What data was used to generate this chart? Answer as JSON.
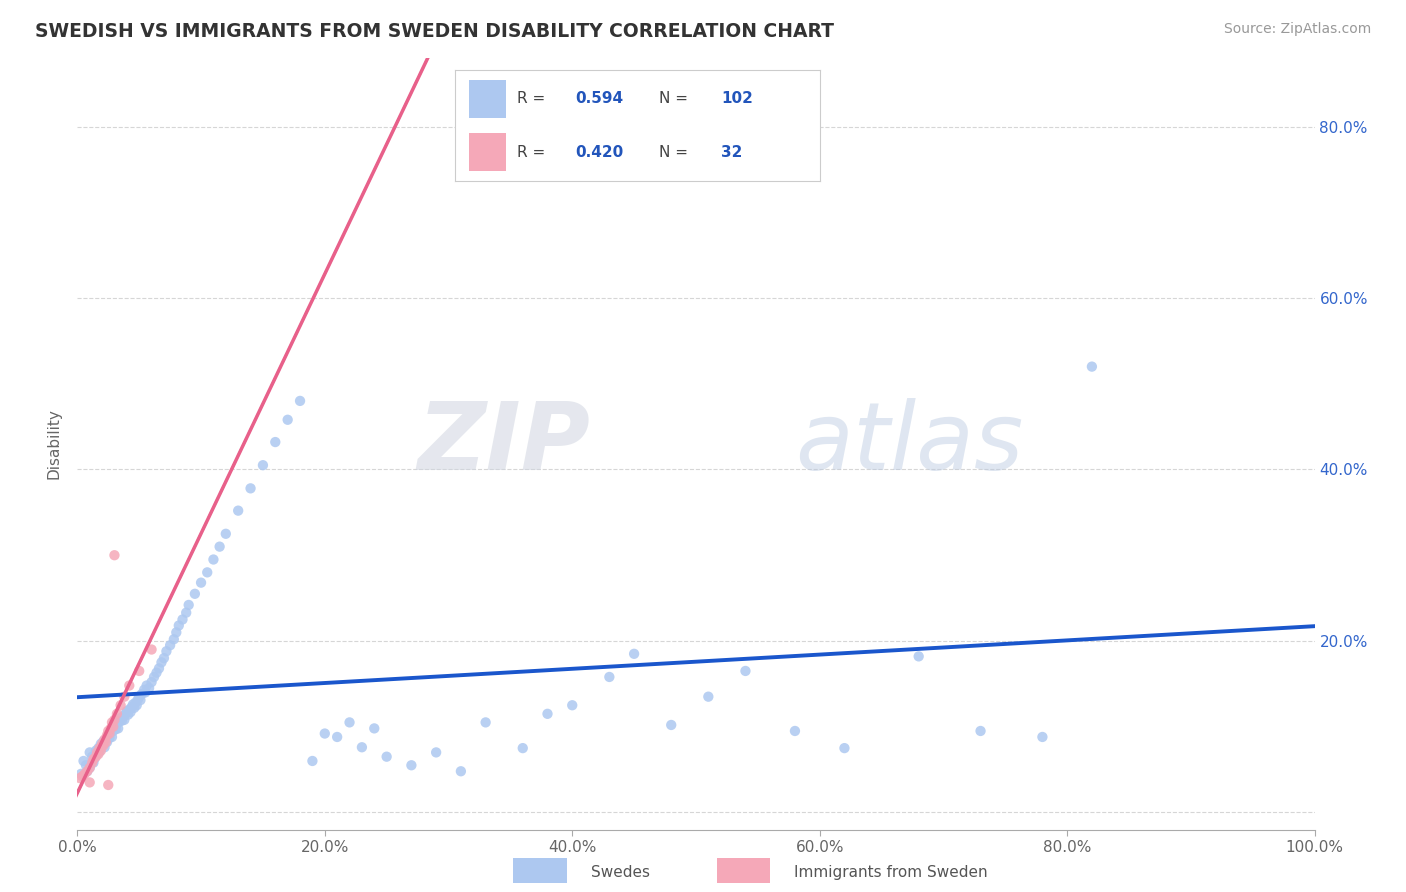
{
  "title": "SWEDISH VS IMMIGRANTS FROM SWEDEN DISABILITY CORRELATION CHART",
  "source": "Source: ZipAtlas.com",
  "ylabel": "Disability",
  "swedes_R": 0.594,
  "swedes_N": 102,
  "immigrants_R": 0.42,
  "immigrants_N": 32,
  "swedes_color": "#adc8f0",
  "immigrants_color": "#f5a8b8",
  "swedes_line_color": "#1a56cc",
  "immigrants_line_color": "#e8608a",
  "immigrants_dash_color": "#e8a0b8",
  "background_color": "#ffffff",
  "grid_color": "#cccccc",
  "text_color": "#3366cc",
  "legend_R_N_color": "#2255bb",
  "watermark_ZIP_color": "#d8dde8",
  "watermark_atlas_color": "#c8d0e0",
  "swedes_x": [
    0.003,
    0.005,
    0.007,
    0.008,
    0.01,
    0.01,
    0.012,
    0.013,
    0.014,
    0.015,
    0.016,
    0.017,
    0.018,
    0.019,
    0.02,
    0.021,
    0.022,
    0.023,
    0.024,
    0.025,
    0.026,
    0.027,
    0.028,
    0.029,
    0.03,
    0.031,
    0.032,
    0.033,
    0.034,
    0.035,
    0.036,
    0.037,
    0.038,
    0.039,
    0.04,
    0.041,
    0.042,
    0.043,
    0.044,
    0.045,
    0.046,
    0.047,
    0.048,
    0.049,
    0.05,
    0.051,
    0.052,
    0.054,
    0.055,
    0.056,
    0.058,
    0.06,
    0.062,
    0.064,
    0.066,
    0.068,
    0.07,
    0.072,
    0.075,
    0.078,
    0.08,
    0.082,
    0.085,
    0.088,
    0.09,
    0.095,
    0.1,
    0.105,
    0.11,
    0.115,
    0.12,
    0.13,
    0.14,
    0.15,
    0.16,
    0.17,
    0.18,
    0.19,
    0.2,
    0.21,
    0.22,
    0.23,
    0.24,
    0.25,
    0.27,
    0.29,
    0.31,
    0.33,
    0.36,
    0.38,
    0.4,
    0.43,
    0.45,
    0.48,
    0.51,
    0.54,
    0.58,
    0.62,
    0.68,
    0.73,
    0.78,
    0.82
  ],
  "swedes_y": [
    0.045,
    0.06,
    0.055,
    0.048,
    0.07,
    0.052,
    0.065,
    0.058,
    0.063,
    0.072,
    0.068,
    0.075,
    0.071,
    0.08,
    0.078,
    0.083,
    0.076,
    0.085,
    0.082,
    0.09,
    0.087,
    0.093,
    0.088,
    0.095,
    0.1,
    0.097,
    0.103,
    0.098,
    0.106,
    0.11,
    0.107,
    0.112,
    0.108,
    0.115,
    0.118,
    0.114,
    0.12,
    0.117,
    0.123,
    0.126,
    0.122,
    0.128,
    0.125,
    0.132,
    0.135,
    0.131,
    0.138,
    0.143,
    0.14,
    0.148,
    0.145,
    0.152,
    0.158,
    0.163,
    0.168,
    0.175,
    0.18,
    0.188,
    0.195,
    0.202,
    0.21,
    0.218,
    0.225,
    0.233,
    0.242,
    0.255,
    0.268,
    0.28,
    0.295,
    0.31,
    0.325,
    0.352,
    0.378,
    0.405,
    0.432,
    0.458,
    0.48,
    0.06,
    0.092,
    0.088,
    0.105,
    0.076,
    0.098,
    0.065,
    0.055,
    0.07,
    0.048,
    0.105,
    0.075,
    0.115,
    0.125,
    0.158,
    0.185,
    0.102,
    0.135,
    0.165,
    0.095,
    0.075,
    0.182,
    0.095,
    0.088,
    0.52
  ],
  "immigrants_x": [
    0.002,
    0.004,
    0.006,
    0.008,
    0.01,
    0.01,
    0.012,
    0.013,
    0.015,
    0.016,
    0.017,
    0.018,
    0.019,
    0.02,
    0.021,
    0.022,
    0.023,
    0.024,
    0.025,
    0.026,
    0.027,
    0.028,
    0.029,
    0.03,
    0.032,
    0.035,
    0.038,
    0.042,
    0.05,
    0.06,
    0.03,
    0.025
  ],
  "immigrants_y": [
    0.04,
    0.042,
    0.045,
    0.048,
    0.052,
    0.035,
    0.058,
    0.062,
    0.065,
    0.07,
    0.068,
    0.075,
    0.072,
    0.08,
    0.078,
    0.085,
    0.082,
    0.09,
    0.095,
    0.092,
    0.098,
    0.105,
    0.1,
    0.108,
    0.115,
    0.125,
    0.135,
    0.148,
    0.165,
    0.19,
    0.3,
    0.032
  ],
  "xlim": [
    0.0,
    1.0
  ],
  "ylim": [
    -0.02,
    0.88
  ],
  "xticks": [
    0.0,
    0.2,
    0.4,
    0.6,
    0.8,
    1.0
  ],
  "xtick_labels": [
    "0.0%",
    "20.0%",
    "40.0%",
    "60.0%",
    "80.0%",
    "100.0%"
  ],
  "right_yticks": [
    0.2,
    0.4,
    0.6,
    0.8
  ],
  "right_ytick_labels": [
    "20.0%",
    "40.0%",
    "60.0%",
    "80.0%"
  ]
}
